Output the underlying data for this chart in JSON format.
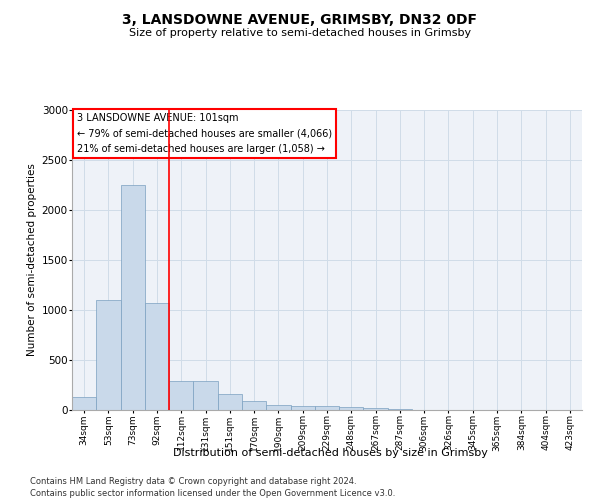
{
  "title": "3, LANSDOWNE AVENUE, GRIMSBY, DN32 0DF",
  "subtitle": "Size of property relative to semi-detached houses in Grimsby",
  "xlabel": "Distribution of semi-detached houses by size in Grimsby",
  "ylabel": "Number of semi-detached properties",
  "footnote1": "Contains HM Land Registry data © Crown copyright and database right 2024.",
  "footnote2": "Contains public sector information licensed under the Open Government Licence v3.0.",
  "property_label": "3 LANSDOWNE AVENUE: 101sqm",
  "smaller_pct": "79% of semi-detached houses are smaller (4,066)",
  "larger_pct": "21% of semi-detached houses are larger (1,058)",
  "bar_color": "#c9d9ea",
  "bar_edge_color": "#7aa0c0",
  "vline_color": "red",
  "grid_color": "#d0dce8",
  "bg_color": "#eef2f8",
  "categories": [
    "34sqm",
    "53sqm",
    "73sqm",
    "92sqm",
    "112sqm",
    "131sqm",
    "151sqm",
    "170sqm",
    "190sqm",
    "209sqm",
    "229sqm",
    "248sqm",
    "267sqm",
    "287sqm",
    "306sqm",
    "326sqm",
    "345sqm",
    "365sqm",
    "384sqm",
    "404sqm",
    "423sqm"
  ],
  "values": [
    130,
    1100,
    2250,
    1070,
    295,
    295,
    165,
    90,
    55,
    45,
    40,
    35,
    22,
    10,
    4,
    3,
    2,
    2,
    1,
    1,
    1
  ],
  "vline_position": 3.5,
  "ylim": [
    0,
    3000
  ],
  "yticks": [
    0,
    500,
    1000,
    1500,
    2000,
    2500,
    3000
  ]
}
